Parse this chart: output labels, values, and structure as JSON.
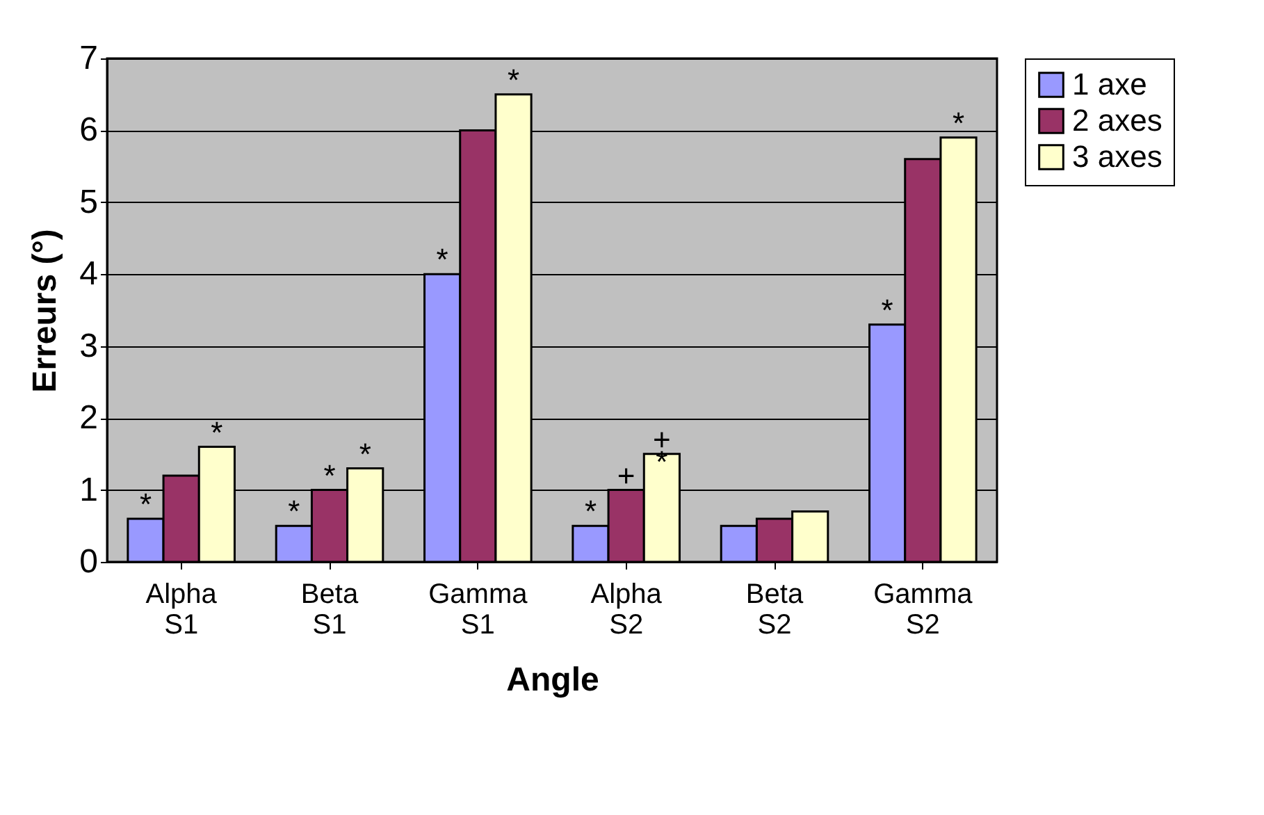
{
  "chart_data": {
    "type": "bar",
    "xlabel": "Angle",
    "ylabel": "Erreurs (°)",
    "categories": [
      "Alpha S1",
      "Beta S1",
      "Gamma S1",
      "Alpha S2",
      "Beta S2",
      "Gamma S2"
    ],
    "series": [
      {
        "name": "1 axe",
        "color": "#9999ff",
        "values": [
          0.6,
          0.5,
          4.0,
          0.5,
          0.5,
          3.3
        ],
        "value_labels": [
          "*",
          "*",
          "*",
          "*",
          null,
          "*"
        ]
      },
      {
        "name": "2 axes",
        "color": "#993366",
        "values": [
          1.2,
          1.0,
          6.0,
          1.0,
          0.6,
          5.6
        ],
        "value_labels": [
          null,
          "*",
          null,
          "+",
          null,
          null
        ]
      },
      {
        "name": "3 axes",
        "color": "#ffffcc",
        "values": [
          1.6,
          1.3,
          6.5,
          1.5,
          0.7,
          5.9
        ],
        "value_labels": [
          "*",
          "*",
          "*",
          "+\n*",
          null,
          "*"
        ]
      }
    ],
    "ylim": [
      0,
      7
    ],
    "yticks": [
      0,
      1,
      2,
      3,
      4,
      5,
      6,
      7
    ],
    "grid": "y",
    "legend": "right"
  }
}
